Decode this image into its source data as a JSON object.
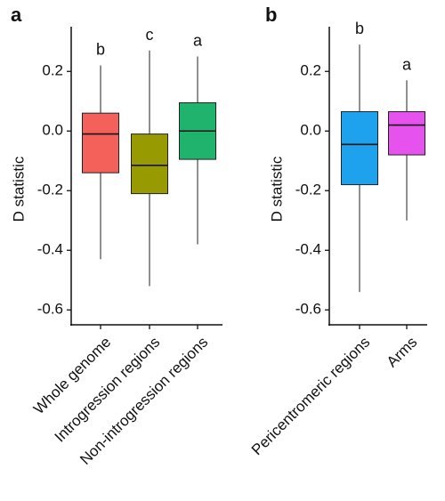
{
  "chart_data": [
    {
      "type": "box",
      "panel_label": "a",
      "ylabel": "D statistic",
      "ylim": [
        -0.65,
        0.35
      ],
      "yticks": [
        -0.6,
        -0.4,
        -0.2,
        0.0,
        0.2
      ],
      "ytick_labels": [
        "-0.6",
        "-0.4",
        "-0.2",
        "0.0",
        "0.2"
      ],
      "categories": [
        "Whole genome",
        "Introgression regions",
        "Non-introgression regions"
      ],
      "boxes": [
        {
          "min": -0.43,
          "q1": -0.14,
          "median": -0.01,
          "q3": 0.06,
          "max": 0.22,
          "color": "#f4605a",
          "letter": "b"
        },
        {
          "min": -0.52,
          "q1": -0.21,
          "median": -0.115,
          "q3": -0.01,
          "max": 0.27,
          "color": "#979a00",
          "letter": "c"
        },
        {
          "min": -0.38,
          "q1": -0.095,
          "median": 0.0,
          "q3": 0.095,
          "max": 0.25,
          "color": "#1fb36e",
          "letter": "a"
        }
      ]
    },
    {
      "type": "box",
      "panel_label": "b",
      "ylabel": "D statistic",
      "ylim": [
        -0.65,
        0.35
      ],
      "yticks": [
        -0.6,
        -0.4,
        -0.2,
        0.0,
        0.2
      ],
      "ytick_labels": [
        "-0.6",
        "-0.4",
        "-0.2",
        "0.0",
        "0.2"
      ],
      "categories": [
        "Pericentromeric regions",
        "Arms"
      ],
      "boxes": [
        {
          "min": -0.54,
          "q1": -0.18,
          "median": -0.045,
          "q3": 0.065,
          "max": 0.29,
          "color": "#1ea2ee",
          "letter": "b"
        },
        {
          "min": -0.3,
          "q1": -0.08,
          "median": 0.02,
          "q3": 0.065,
          "max": 0.17,
          "color": "#e552ee",
          "letter": "a"
        }
      ]
    }
  ]
}
